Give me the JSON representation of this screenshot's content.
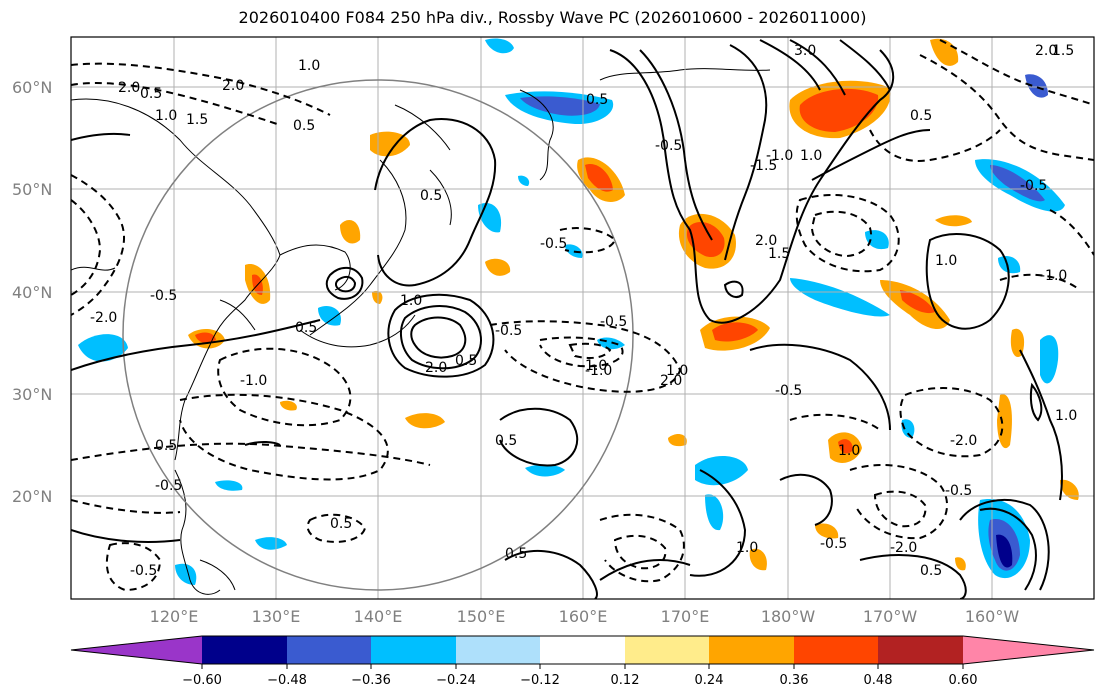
{
  "title": "2026010400 F084 250 hPa div., Rossby Wave PC (2026010600 - 2026011000)",
  "lat_labels": [
    "60°N",
    "50°N",
    "40°N",
    "30°N",
    "20°N"
  ],
  "lon_labels": [
    "120°E",
    "130°E",
    "140°E",
    "150°E",
    "160°E",
    "170°E",
    "180°W",
    "170°W",
    "160°W"
  ],
  "colorbar": {
    "ticks": [
      "−0.60",
      "−0.48",
      "−0.36",
      "−0.24",
      "−0.12",
      "0.12",
      "0.24",
      "0.36",
      "0.48",
      "0.60"
    ],
    "colors": [
      "#9a35c9",
      "#00008b",
      "#3a5bd0",
      "#00bfff",
      "#aee0fb",
      "#ffffff",
      "#ffec8b",
      "#ffa500",
      "#ff4500",
      "#b22222",
      "#ff85a8"
    ]
  },
  "contour_labels": [
    "2.0",
    "0.5",
    "1.0",
    "1.5",
    "0.5",
    "3.0",
    "2.0",
    "1.5",
    "0.5",
    "1.0",
    "2.0",
    "0.5",
    "1.0",
    "-0.5",
    "-1.0",
    "-1.5",
    "-0.5",
    "0.5",
    "2.0",
    "1.5",
    "1.0",
    "-0.5",
    "-1.0",
    "1.0",
    "-0.5",
    "-2.0",
    "0.5",
    "-0.5",
    "-1.0",
    "-0.5",
    "2.0",
    "0.5",
    "-1.0",
    "2.0",
    "-0.5",
    "0.5",
    "-0.5",
    "0.5",
    "1.0",
    "-2.0",
    "-0.5",
    "0.5",
    "-0.5",
    "-1.0",
    "1.0",
    "0.5",
    "1.0",
    "-0.5",
    "1.0",
    "-2.0",
    "0.5"
  ],
  "colors": {
    "grid": "#b0b0b0",
    "circle": "#808080",
    "contour": "#000000"
  }
}
